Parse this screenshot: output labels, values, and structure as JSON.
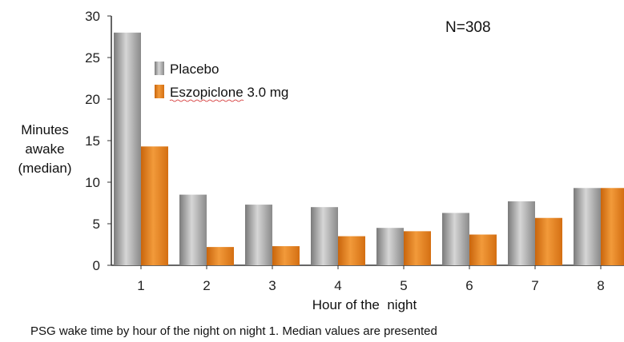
{
  "chart_data": {
    "type": "bar",
    "categories": [
      "1",
      "2",
      "3",
      "4",
      "5",
      "6",
      "7",
      "8"
    ],
    "series": [
      {
        "name": "Placebo",
        "color": "#9a9a9a",
        "values": [
          28,
          8.5,
          7.3,
          7.0,
          4.5,
          6.3,
          7.7,
          9.3
        ]
      },
      {
        "name": "Eszopiclone 3.0 mg",
        "color": "#e8811a",
        "values": [
          14.3,
          2.2,
          2.3,
          3.5,
          4.1,
          3.7,
          5.7,
          9.3
        ]
      }
    ],
    "xlabel": "Hour of the  night",
    "ylabel": [
      "Minutes",
      "awake",
      "(median)"
    ],
    "ylim": [
      0,
      30
    ],
    "yticks": [
      "0",
      "5",
      "10",
      "15",
      "20",
      "25",
      "30"
    ],
    "annotation": "N=308",
    "caption": "PSG wake time by hour of the night on night 1. Median values are presented",
    "legend_position": "upper-left",
    "grid": false
  }
}
